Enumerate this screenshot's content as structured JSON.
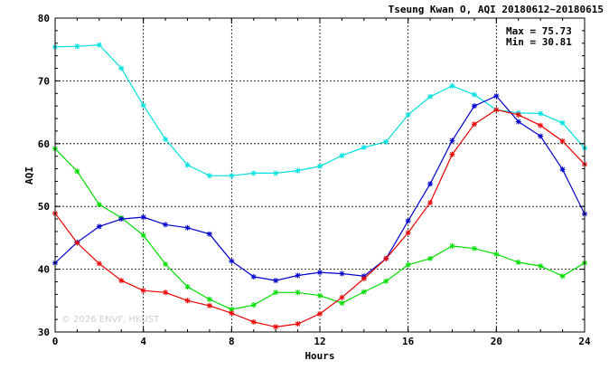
{
  "chart_data": {
    "type": "line",
    "title": "Tseung Kwan O, AQI 20180612~20180615",
    "xlabel": "Hours",
    "ylabel": "AQI",
    "xlim": [
      0,
      24
    ],
    "ylim": [
      30,
      80
    ],
    "xticks": [
      "0",
      "4",
      "8",
      "12",
      "16",
      "20",
      "24"
    ],
    "yticks": [
      "30",
      "40",
      "50",
      "60",
      "70",
      "80"
    ],
    "grid": true,
    "x": [
      0,
      1,
      2,
      3,
      4,
      5,
      6,
      7,
      8,
      9,
      10,
      11,
      12,
      13,
      14,
      15,
      16,
      17,
      18,
      19,
      20,
      21,
      22,
      23,
      24
    ],
    "series": [
      {
        "color": "#00e0e0",
        "values": [
          75.4,
          75.5,
          75.73,
          72.0,
          66.1,
          60.7,
          56.6,
          54.9,
          54.9,
          55.3,
          55.3,
          55.7,
          56.4,
          58.1,
          59.4,
          60.3,
          64.6,
          67.5,
          69.2,
          67.8,
          65.4,
          64.9,
          64.8,
          63.3,
          59.3
        ]
      },
      {
        "color": "#00dd00",
        "values": [
          59.2,
          55.6,
          50.3,
          48.2,
          45.4,
          40.8,
          37.2,
          35.2,
          33.6,
          34.3,
          36.3,
          36.3,
          35.8,
          34.6,
          36.4,
          38.1,
          40.7,
          41.7,
          43.7,
          43.3,
          42.4,
          41.1,
          40.5,
          38.9,
          41.0
        ]
      },
      {
        "color": "#0000cc",
        "values": [
          41.0,
          44.3,
          46.8,
          48.0,
          48.3,
          47.1,
          46.6,
          45.6,
          41.3,
          38.8,
          38.2,
          39.0,
          39.5,
          39.3,
          38.9,
          41.7,
          47.7,
          53.6,
          60.5,
          66.0,
          67.6,
          63.5,
          61.2,
          55.9,
          48.8
        ]
      },
      {
        "color": "#ee0000",
        "values": [
          48.9,
          44.2,
          40.9,
          38.2,
          36.6,
          36.3,
          35.0,
          34.2,
          33.0,
          31.6,
          30.81,
          31.3,
          32.9,
          35.5,
          38.5,
          41.7,
          45.8,
          50.6,
          58.3,
          63.1,
          65.4,
          64.6,
          62.9,
          60.4,
          56.7
        ]
      }
    ],
    "stats": {
      "max_label": "Max = 75.73",
      "min_label": "Min = 30.81"
    },
    "watermark": "© 2026  ENVF, HKUST"
  }
}
